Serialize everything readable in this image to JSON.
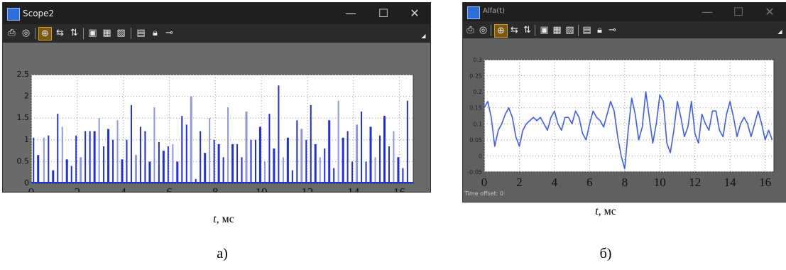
{
  "left_window": {
    "title": "Scope2",
    "controls": {
      "minimize": "—",
      "maximize": "☐",
      "close": "✕"
    },
    "chart_data": {
      "type": "bar",
      "xlim": [
        0,
        16.6
      ],
      "ylim": [
        0,
        2.5
      ],
      "xticks": [
        0,
        2,
        4,
        6,
        8,
        10,
        12,
        14,
        16
      ],
      "yticks": [
        0,
        0.5,
        1,
        1.5,
        2,
        2.5
      ],
      "ytick_labels": [
        "0",
        "0.5",
        "1",
        "1.5",
        "2",
        "2.5"
      ],
      "grid": true,
      "color": "#1f2fe0",
      "x": [
        0.1,
        0.3,
        0.55,
        0.75,
        0.95,
        1.15,
        1.35,
        1.55,
        1.75,
        1.95,
        2.15,
        2.35,
        2.55,
        2.75,
        2.95,
        3.15,
        3.35,
        3.55,
        3.75,
        3.95,
        4.15,
        4.35,
        4.55,
        4.75,
        4.95,
        5.15,
        5.35,
        5.55,
        5.75,
        5.95,
        6.15,
        6.35,
        6.55,
        6.75,
        6.95,
        7.15,
        7.35,
        7.55,
        7.75,
        7.95,
        8.15,
        8.35,
        8.55,
        8.75,
        8.95,
        9.15,
        9.35,
        9.55,
        9.75,
        9.95,
        10.15,
        10.35,
        10.55,
        10.75,
        10.95,
        11.15,
        11.35,
        11.55,
        11.75,
        11.95,
        12.15,
        12.35,
        12.55,
        12.75,
        12.95,
        13.15,
        13.35,
        13.55,
        13.75,
        13.95,
        14.15,
        14.35,
        14.55,
        14.75,
        14.95,
        15.15,
        15.35,
        15.55,
        15.75,
        15.95,
        16.15,
        16.35
      ],
      "values": [
        1.05,
        0.65,
        1.05,
        1.1,
        0.3,
        1.6,
        1.3,
        0.55,
        0.4,
        1.1,
        0.6,
        1.2,
        1.2,
        1.2,
        1.5,
        0.85,
        1.25,
        1.0,
        1.45,
        0.55,
        1.0,
        1.8,
        0.65,
        1.3,
        1.2,
        0.5,
        1.75,
        0.95,
        0.75,
        0.85,
        0.9,
        0.5,
        1.55,
        1.35,
        2.0,
        0.1,
        1.2,
        0.7,
        1.5,
        1.0,
        0.9,
        0.6,
        1.75,
        0.9,
        0.9,
        0.6,
        1.65,
        1.0,
        1.0,
        1.3,
        0.5,
        1.6,
        0.8,
        2.25,
        0.6,
        1.05,
        0.3,
        1.45,
        1.25,
        1.0,
        1.8,
        0.9,
        0.6,
        0.8,
        1.45,
        0.35,
        1.9,
        1.05,
        1.2,
        0.5,
        1.35,
        1.65,
        0.5,
        1.3,
        0.6,
        1.1,
        1.55,
        0.85,
        1.2,
        0.6,
        0.35,
        1.9
      ]
    }
  },
  "right_window": {
    "title": "Alfa(t)",
    "controls": {
      "minimize": "—",
      "maximize": "☐",
      "close": "✕"
    },
    "status": "Time offset: 0",
    "chart_data": {
      "type": "line",
      "xlim": [
        0,
        16.5
      ],
      "ylim": [
        -0.05,
        0.3
      ],
      "xticks": [
        0,
        2,
        4,
        6,
        8,
        10,
        12,
        14,
        16
      ],
      "yticks": [
        -0.05,
        0,
        0.05,
        0.1,
        0.15,
        0.2,
        0.25,
        0.3
      ],
      "ytick_labels": [
        "-0.05",
        "0",
        "0.05",
        "0.1",
        "0.15",
        "0.2",
        "0.25",
        "0.3"
      ],
      "grid": true,
      "color": "#3a5cff",
      "x": [
        0,
        0.2,
        0.4,
        0.6,
        0.8,
        1.0,
        1.2,
        1.4,
        1.6,
        1.8,
        2.0,
        2.2,
        2.4,
        2.6,
        2.8,
        3.0,
        3.2,
        3.4,
        3.6,
        3.8,
        4.0,
        4.2,
        4.4,
        4.6,
        4.8,
        5.0,
        5.2,
        5.4,
        5.6,
        5.8,
        6.0,
        6.2,
        6.4,
        6.6,
        6.8,
        7.0,
        7.2,
        7.4,
        7.6,
        7.8,
        8.0,
        8.2,
        8.4,
        8.6,
        8.8,
        9.0,
        9.2,
        9.4,
        9.6,
        9.8,
        10.0,
        10.2,
        10.4,
        10.6,
        10.8,
        11.0,
        11.2,
        11.4,
        11.6,
        11.8,
        12.0,
        12.2,
        12.4,
        12.6,
        12.8,
        13.0,
        13.2,
        13.4,
        13.6,
        13.8,
        14.0,
        14.2,
        14.4,
        14.6,
        14.8,
        15.0,
        15.2,
        15.4,
        15.6,
        15.8,
        16.0,
        16.2,
        16.4
      ],
      "y": [
        0.15,
        0.17,
        0.12,
        0.03,
        0.08,
        0.1,
        0.13,
        0.15,
        0.12,
        0.06,
        0.03,
        0.08,
        0.1,
        0.11,
        0.12,
        0.11,
        0.12,
        0.1,
        0.08,
        0.12,
        0.14,
        0.1,
        0.08,
        0.12,
        0.12,
        0.1,
        0.14,
        0.12,
        0.07,
        0.05,
        0.1,
        0.14,
        0.12,
        0.11,
        0.09,
        0.13,
        0.17,
        0.14,
        0.06,
        0.0,
        -0.04,
        0.08,
        0.18,
        0.13,
        0.05,
        0.09,
        0.2,
        0.12,
        0.04,
        0.1,
        0.19,
        0.17,
        0.04,
        0.01,
        0.08,
        0.17,
        0.12,
        0.06,
        0.09,
        0.17,
        0.07,
        0.04,
        0.13,
        0.1,
        0.08,
        0.14,
        0.14,
        0.08,
        0.06,
        0.13,
        0.17,
        0.12,
        0.06,
        0.1,
        0.12,
        0.1,
        0.06,
        0.1,
        0.14,
        0.1,
        0.05,
        0.08,
        0.05
      ]
    }
  },
  "captions": {
    "left_axis": "t",
    "left_unit": ", мс",
    "right_axis": "t",
    "right_unit": ", мс",
    "left_letter": "а)",
    "right_letter": "б)"
  }
}
